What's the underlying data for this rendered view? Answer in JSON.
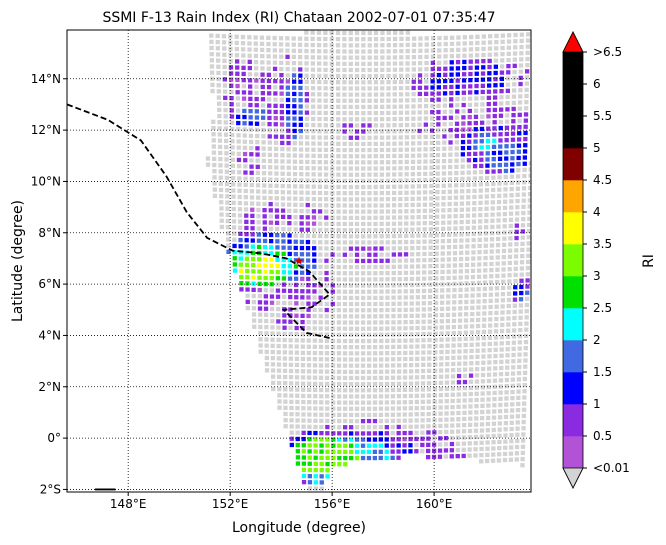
{
  "chart_data": {
    "type": "heatmap",
    "title": "SSMI F-13 Rain Index (RI) Chataan 2002-07-01 07:35:47",
    "xlabel": "Longitude (degree)",
    "ylabel": "Latitude (degree)",
    "xlim": [
      145.6,
      163.8
    ],
    "ylim": [
      -2.1,
      15.9
    ],
    "grid": true,
    "x_ticks": [
      {
        "value": 148,
        "label": "148°E"
      },
      {
        "value": 152,
        "label": "152°E"
      },
      {
        "value": 156,
        "label": "156°E"
      },
      {
        "value": 160,
        "label": "160°E"
      }
    ],
    "y_ticks": [
      {
        "value": -2,
        "label": "2°S"
      },
      {
        "value": 0,
        "label": "0°"
      },
      {
        "value": 2,
        "label": "2°N"
      },
      {
        "value": 4,
        "label": "4°N"
      },
      {
        "value": 6,
        "label": "6°N"
      },
      {
        "value": 8,
        "label": "8°N"
      },
      {
        "value": 10,
        "label": "10°N"
      },
      {
        "value": 12,
        "label": "12°N"
      },
      {
        "value": 14,
        "label": "14°N"
      }
    ],
    "swath": {
      "polygon_lonlat": [
        [
          151.0,
          15.8
        ],
        [
          163.8,
          15.8
        ],
        [
          163.8,
          -1.1
        ],
        [
          159.2,
          -0.7
        ],
        [
          156.0,
          -1.1
        ],
        [
          155.6,
          -2.1
        ],
        [
          155.0,
          -2.1
        ],
        [
          151.8,
          7.6
        ],
        [
          151.1,
          10.8
        ],
        [
          151.4,
          12.8
        ]
      ],
      "no_rain_color": "#d3d3d3"
    },
    "track": [
      {
        "lon": 145.6,
        "lat": 13.0
      },
      {
        "lon": 147.2,
        "lat": 12.4
      },
      {
        "lon": 148.5,
        "lat": 11.6
      },
      {
        "lon": 149.5,
        "lat": 10.2
      },
      {
        "lon": 150.3,
        "lat": 8.8
      },
      {
        "lon": 151.1,
        "lat": 7.8
      },
      {
        "lon": 152.1,
        "lat": 7.3
      },
      {
        "lon": 153.2,
        "lat": 7.2
      },
      {
        "lon": 154.2,
        "lat": 7.0
      },
      {
        "lon": 155.1,
        "lat": 6.5
      },
      {
        "lon": 155.9,
        "lat": 5.6
      },
      {
        "lon": 155.2,
        "lat": 5.1
      },
      {
        "lon": 154.1,
        "lat": 5.0
      },
      {
        "lon": 155.0,
        "lat": 4.1
      },
      {
        "lon": 155.9,
        "lat": 3.9
      }
    ],
    "track_start_marker": {
      "lon": 154.7,
      "lat": 6.9,
      "color": "#cc0000"
    },
    "track_bottom_segment": [
      {
        "lon": 146.7,
        "lat": -2.0
      },
      {
        "lon": 147.5,
        "lat": -2.0
      }
    ],
    "rain_clusters": [
      {
        "lon": 153.1,
        "lat": 6.6,
        "rx": 0.9,
        "ry": 0.55,
        "level": 3.5
      },
      {
        "lon": 153.2,
        "lat": 6.7,
        "rx": 1.4,
        "ry": 0.8,
        "level": 2.5
      },
      {
        "lon": 153.6,
        "lat": 7.0,
        "rx": 1.9,
        "ry": 1.0,
        "level": 1.5
      },
      {
        "lon": 153.4,
        "lat": 6.6,
        "rx": 2.5,
        "ry": 1.5,
        "level": 0.5
      },
      {
        "lon": 154.4,
        "lat": 5.7,
        "rx": 1.8,
        "ry": 1.2,
        "level": 0.5
      },
      {
        "lon": 154.5,
        "lat": 4.6,
        "rx": 1.0,
        "ry": 0.5,
        "level": 0.5
      },
      {
        "lon": 153.3,
        "lat": 8.6,
        "rx": 0.9,
        "ry": 0.7,
        "level": 0.5
      },
      {
        "lon": 155.0,
        "lat": 8.6,
        "rx": 0.8,
        "ry": 0.5,
        "level": 0.5
      },
      {
        "lon": 157.6,
        "lat": 7.2,
        "rx": 1.6,
        "ry": 0.4,
        "level": 0.5
      },
      {
        "lon": 155.6,
        "lat": -0.7,
        "rx": 1.4,
        "ry": 0.7,
        "level": 3.0
      },
      {
        "lon": 154.7,
        "lat": -0.6,
        "rx": 0.4,
        "ry": 0.4,
        "level": 1.5
      },
      {
        "lon": 156.2,
        "lat": -0.9,
        "rx": 2.2,
        "ry": 1.0,
        "level": 2.0
      },
      {
        "lon": 156.5,
        "lat": -0.8,
        "rx": 3.0,
        "ry": 1.2,
        "level": 1.0
      },
      {
        "lon": 157.0,
        "lat": -0.6,
        "rx": 4.2,
        "ry": 1.3,
        "level": 0.5
      },
      {
        "lon": 162.0,
        "lat": 11.5,
        "rx": 0.5,
        "ry": 0.4,
        "level": 2.0
      },
      {
        "lon": 162.8,
        "lat": 11.0,
        "rx": 0.8,
        "ry": 0.6,
        "level": 1.5
      },
      {
        "lon": 162.5,
        "lat": 11.3,
        "rx": 1.5,
        "ry": 1.0,
        "level": 1.0
      },
      {
        "lon": 161.6,
        "lat": 12.2,
        "rx": 2.5,
        "ry": 0.8,
        "level": 0.5
      },
      {
        "lon": 161.3,
        "lat": 14.0,
        "rx": 1.6,
        "ry": 0.7,
        "level": 1.0
      },
      {
        "lon": 161.5,
        "lat": 13.9,
        "rx": 2.5,
        "ry": 1.0,
        "level": 0.5
      },
      {
        "lon": 154.6,
        "lat": 13.0,
        "rx": 0.4,
        "ry": 1.4,
        "level": 1.5
      },
      {
        "lon": 154.2,
        "lat": 13.1,
        "rx": 1.0,
        "ry": 1.8,
        "level": 0.5
      },
      {
        "lon": 152.8,
        "lat": 12.5,
        "rx": 0.6,
        "ry": 0.4,
        "level": 1.5
      },
      {
        "lon": 152.5,
        "lat": 13.6,
        "rx": 1.0,
        "ry": 1.2,
        "level": 0.5
      },
      {
        "lon": 152.8,
        "lat": 10.8,
        "rx": 0.5,
        "ry": 0.6,
        "level": 0.5
      },
      {
        "lon": 157.0,
        "lat": 12.0,
        "rx": 0.6,
        "ry": 0.4,
        "level": 0.5
      },
      {
        "lon": 163.4,
        "lat": 5.7,
        "rx": 0.3,
        "ry": 0.4,
        "level": 1.5
      },
      {
        "lon": 163.5,
        "lat": 5.8,
        "rx": 0.5,
        "ry": 0.7,
        "level": 0.5
      },
      {
        "lon": 163.3,
        "lat": 8.0,
        "rx": 0.4,
        "ry": 0.3,
        "level": 0.5
      },
      {
        "lon": 161.2,
        "lat": 2.3,
        "rx": 0.5,
        "ry": 0.3,
        "level": 0.5
      }
    ],
    "colorbar": {
      "label": "RI",
      "boundaries": [
        0.01,
        0.5,
        1,
        1.5,
        2,
        2.5,
        3,
        3.5,
        4,
        4.5,
        5,
        5.5,
        6,
        6.5
      ],
      "colors": [
        "#b252d6",
        "#8a2be2",
        "#0000ff",
        "#4169e1",
        "#00ffff",
        "#00e000",
        "#7cfc00",
        "#ffff00",
        "#ffa500",
        "#800000",
        "#000000",
        "#000000",
        "#000000"
      ],
      "under_color": "#d3d3d3",
      "over_color": "#ff0000",
      "tick_labels": [
        "<0.01",
        "0.5",
        "1",
        "1.5",
        "2",
        "2.5",
        "3",
        "3.5",
        "4",
        "4.5",
        "5",
        "5.5",
        "6",
        ">6.5"
      ]
    }
  }
}
